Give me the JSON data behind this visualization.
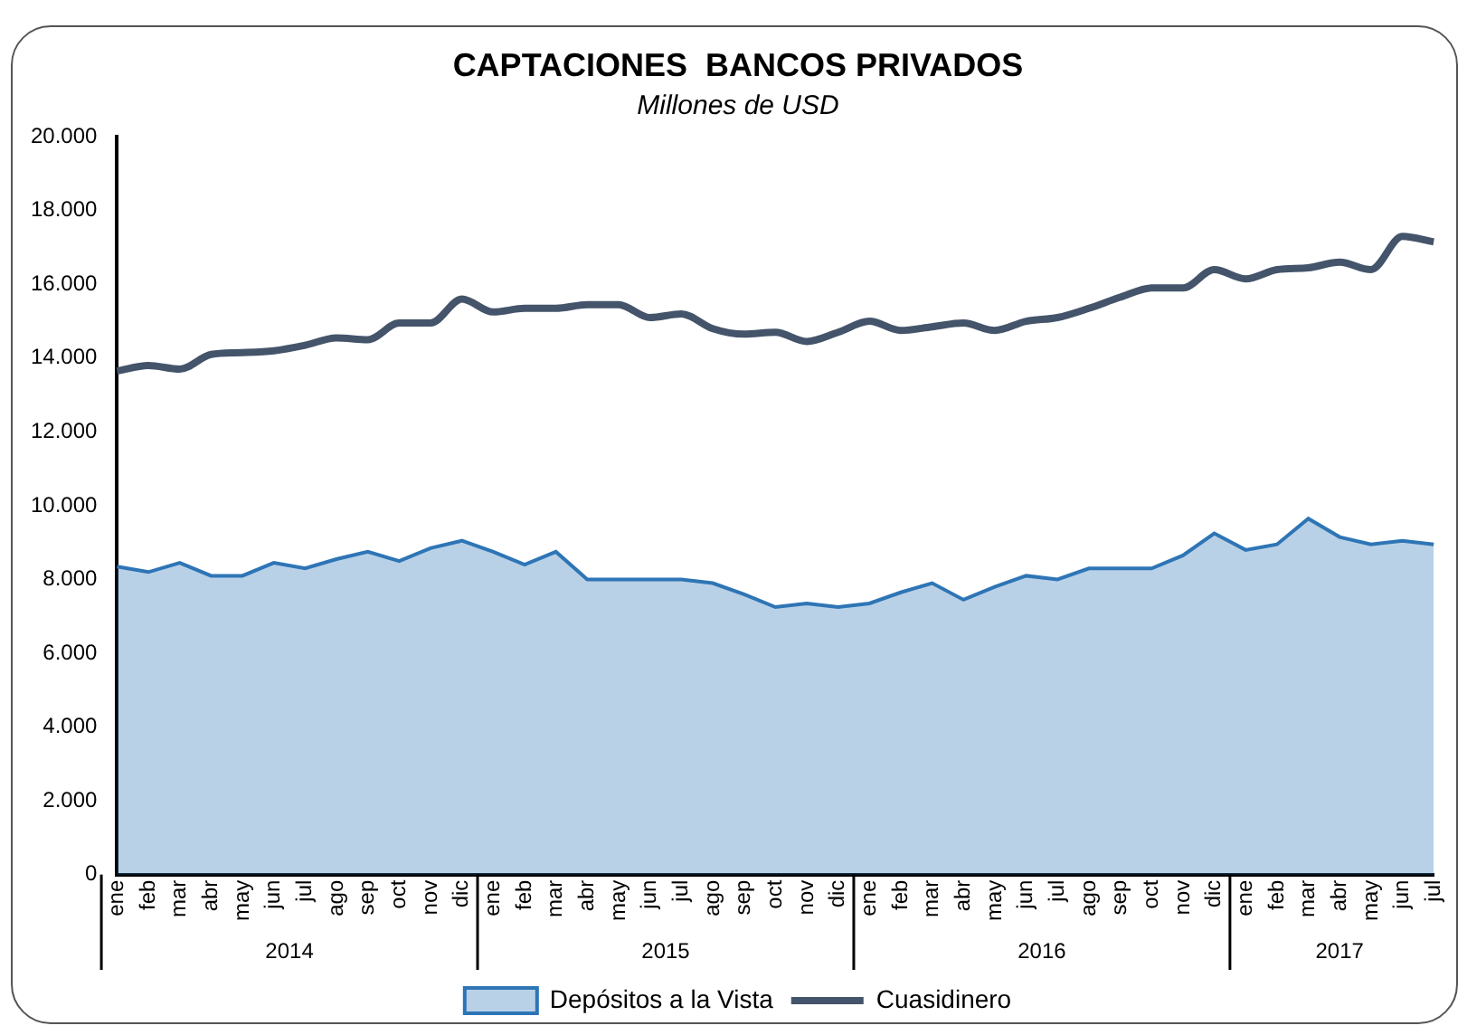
{
  "chart_data": {
    "type": "area",
    "title": "CAPTACIONES  BANCOS PRIVADOS",
    "subtitle": "Millones de USD",
    "categories": [
      "ene",
      "feb",
      "mar",
      "abr",
      "may",
      "jun",
      "jul",
      "ago",
      "sep",
      "oct",
      "nov",
      "dic",
      "ene",
      "feb",
      "mar",
      "abr",
      "may",
      "jun",
      "jul",
      "ago",
      "sep",
      "oct",
      "nov",
      "dic",
      "ene",
      "feb",
      "mar",
      "abr",
      "may",
      "jun",
      "jul",
      "ago",
      "sep",
      "oct",
      "nov",
      "dic",
      "ene",
      "feb",
      "mar",
      "abr",
      "may",
      "jun",
      "jul"
    ],
    "series": [
      {
        "name": "Depósitos a la Vista",
        "color": "#2e75b6",
        "values": [
          8350,
          8200,
          8450,
          8100,
          8100,
          8450,
          8300,
          8550,
          8750,
          8500,
          8850,
          9050,
          8750,
          8400,
          8750,
          8000,
          8000,
          8000,
          8000,
          7900,
          7600,
          7250,
          7350,
          7250,
          7350,
          7650,
          7900,
          7450,
          7800,
          8100,
          8000,
          8300,
          8300,
          8300,
          8650,
          9250,
          8800,
          8950,
          9650,
          9150,
          8950,
          9050,
          8950
        ]
      },
      {
        "name": "Cuasidinero",
        "type": "line",
        "color": "#44546a",
        "values": [
          13650,
          13800,
          13700,
          14100,
          14150,
          14200,
          14350,
          14550,
          14500,
          14950,
          14950,
          15600,
          15250,
          15350,
          15350,
          15450,
          15450,
          15100,
          15200,
          14800,
          14650,
          14700,
          14450,
          14700,
          15000,
          14750,
          14850,
          14950,
          14750,
          15000,
          15100,
          15350,
          15650,
          15900,
          15900,
          16400,
          16150,
          16400,
          16450,
          16600,
          16400,
          17300,
          17150
        ]
      }
    ],
    "ylim": [
      0,
      20000
    ],
    "yticks": [
      {
        "value": 0,
        "label": "0"
      },
      {
        "value": 2000,
        "label": "2.000"
      },
      {
        "value": 4000,
        "label": "4.000"
      },
      {
        "value": 6000,
        "label": "6.000"
      },
      {
        "value": 8000,
        "label": "8.000"
      },
      {
        "value": 10000,
        "label": "10.000"
      },
      {
        "value": 12000,
        "label": "12.000"
      },
      {
        "value": 14000,
        "label": "14.000"
      },
      {
        "value": 16000,
        "label": "16.000"
      },
      {
        "value": 18000,
        "label": "18.000"
      },
      {
        "value": 20000,
        "label": "20.000"
      }
    ],
    "annotations": [
      "2014",
      "2015",
      "2016",
      "2017"
    ],
    "legend": "bottom",
    "grid": false
  }
}
